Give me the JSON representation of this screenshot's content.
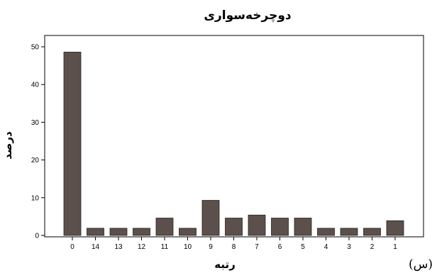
{
  "chart_data": {
    "type": "bar",
    "title": "دوچرخه‌سواری",
    "xlabel": "رتبه",
    "ylabel": "درصد",
    "categories": [
      "0",
      "14",
      "13",
      "12",
      "11",
      "10",
      "9",
      "8",
      "7",
      "6",
      "5",
      "4",
      "3",
      "2",
      "1"
    ],
    "values": [
      48.6,
      1.9,
      1.9,
      1.9,
      4.6,
      1.9,
      9.3,
      4.6,
      5.4,
      4.6,
      4.6,
      1.9,
      1.9,
      1.9,
      3.9
    ],
    "ylim": [
      0,
      53
    ],
    "yticks": [
      0,
      10,
      20,
      30,
      40,
      50
    ],
    "grid": false,
    "bar_color": "#5b504c",
    "bar_edge": "#2a2320"
  },
  "corner_label": "(س)"
}
